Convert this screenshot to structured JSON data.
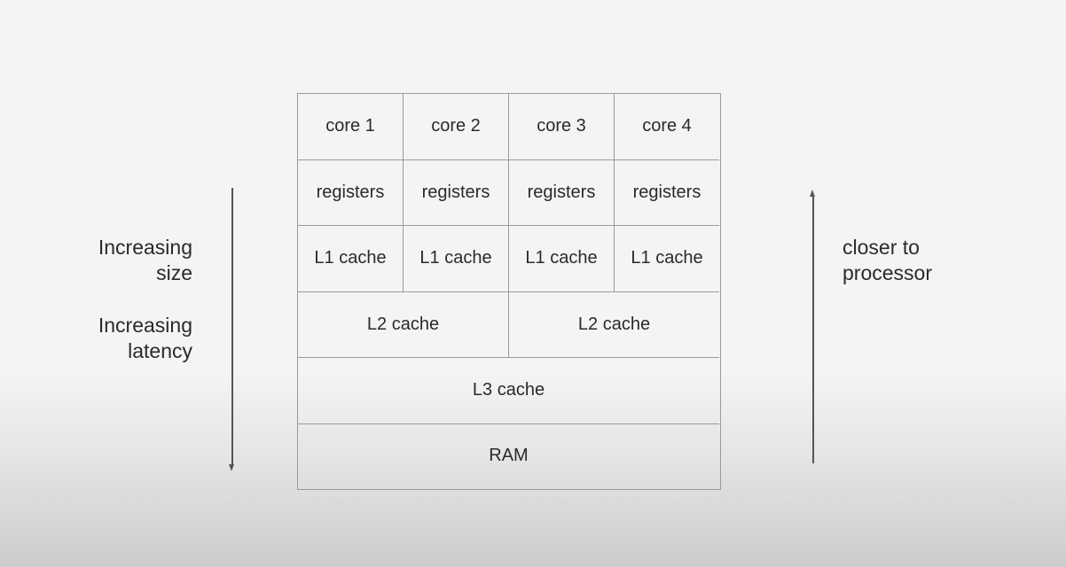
{
  "left_labels": {
    "size": [
      "Increasing",
      "size"
    ],
    "latency": [
      "Increasing",
      "latency"
    ]
  },
  "right_label": [
    "closer to",
    "processor"
  ],
  "hierarchy": {
    "cores": [
      "core 1",
      "core 2",
      "core 3",
      "core 4"
    ],
    "registers": [
      "registers",
      "registers",
      "registers",
      "registers"
    ],
    "l1": [
      "L1 cache",
      "L1 cache",
      "L1 cache",
      "L1 cache"
    ],
    "l2": [
      "L2 cache",
      "L2 cache"
    ],
    "l3": "L3 cache",
    "ram": "RAM"
  }
}
